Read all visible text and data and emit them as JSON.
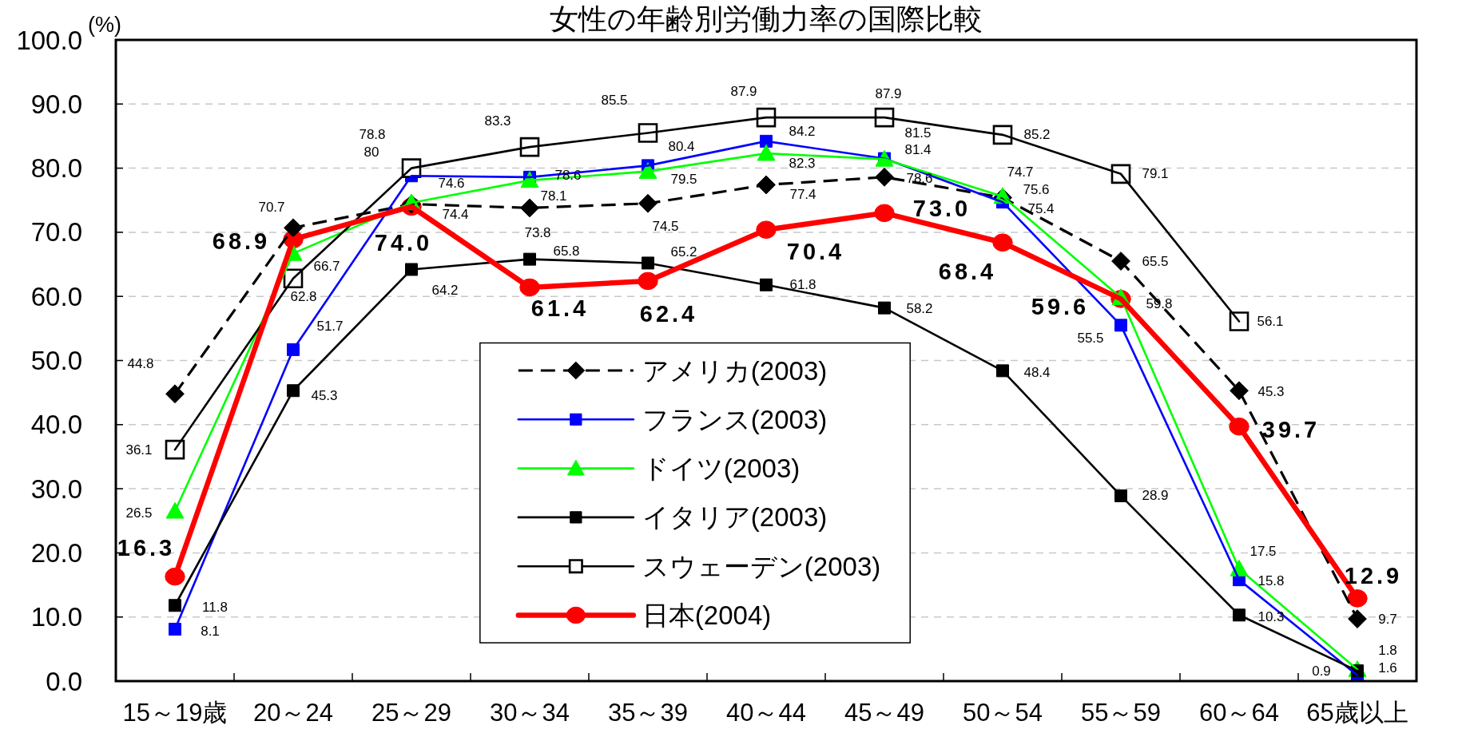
{
  "chart_data": {
    "type": "line",
    "title": "女性の年齢別労働力率の国際比較",
    "ylabel": "(%)",
    "categories": [
      "15～19歳",
      "20～24",
      "25～29",
      "30～34",
      "35～39",
      "40～44",
      "45～49",
      "50～54",
      "55～59",
      "60～64",
      "65歳以上"
    ],
    "ylim": [
      0,
      100
    ],
    "yticks": [
      {
        "value": 0,
        "label": "0.0"
      },
      {
        "value": 10,
        "label": "10.0"
      },
      {
        "value": 20,
        "label": "20.0"
      },
      {
        "value": 30,
        "label": "30.0"
      },
      {
        "value": 40,
        "label": "40.0"
      },
      {
        "value": 50,
        "label": "50.0"
      },
      {
        "value": 60,
        "label": "60.0"
      },
      {
        "value": 70,
        "label": "70.0"
      },
      {
        "value": 80,
        "label": "80.0"
      },
      {
        "value": 90,
        "label": "90.0"
      },
      {
        "value": 100,
        "label": "100.0"
      }
    ],
    "grid": "y",
    "legend": "bottom",
    "series": [
      {
        "name": "アメリカ(2003)",
        "color": "#000000",
        "marker": "diamond",
        "line_style": "dashed",
        "values": [
          44.8,
          70.7,
          74.4,
          73.8,
          74.5,
          77.4,
          78.6,
          75.4,
          65.5,
          45.3,
          9.7
        ],
        "value_labels": [
          "44.8",
          "70.7",
          "74.4",
          "73.8",
          "74.5",
          "77.4",
          "78.6",
          "75.4",
          "65.5",
          "45.3",
          "9.7"
        ]
      },
      {
        "name": "フランス(2003)",
        "color": "#0000ff",
        "marker": "square",
        "line_style": "solid",
        "values": [
          8.1,
          51.7,
          78.8,
          78.6,
          80.4,
          84.2,
          81.5,
          74.7,
          55.5,
          15.8,
          0.9
        ],
        "value_labels": [
          "8.1",
          "51.7",
          "78.8",
          "78.6",
          "80.4",
          "84.2",
          "81.5",
          "74.7",
          "55.5",
          "15.8",
          "0.9"
        ]
      },
      {
        "name": "ドイツ(2003)",
        "color": "#00ff00",
        "marker": "triangle",
        "line_style": "solid",
        "values": [
          26.5,
          66.7,
          74.6,
          78.1,
          79.5,
          82.3,
          81.4,
          75.6,
          59.8,
          17.5,
          1.8
        ],
        "value_labels": [
          "26.5",
          "66.7",
          "74.6",
          "78.1",
          "79.5",
          "82.3",
          "81.4",
          "75.6",
          "59.8",
          "17.5",
          "1.8"
        ]
      },
      {
        "name": "イタリア(2003)",
        "color": "#000000",
        "marker": "square",
        "line_style": "solid",
        "values": [
          11.8,
          45.3,
          64.2,
          65.8,
          65.2,
          61.8,
          58.2,
          48.4,
          28.9,
          10.3,
          1.6
        ],
        "value_labels": [
          "11.8",
          "45.3",
          "64.2",
          "65.8",
          "65.2",
          "61.8",
          "58.2",
          "48.4",
          "28.9",
          "10.3",
          "1.6"
        ]
      },
      {
        "name": "スウェーデン(2003)",
        "color": "#000000",
        "marker": "square",
        "line_style": "solid",
        "values": [
          36.1,
          62.8,
          80,
          83.3,
          85.5,
          87.9,
          87.9,
          85.2,
          79.1,
          56.1,
          null
        ],
        "value_labels": [
          "36.1",
          "62.8",
          "80",
          "83.3",
          "85.5",
          "87.9",
          "87.9",
          "85.2",
          "79.1",
          "56.1",
          null
        ]
      },
      {
        "name": "日本(2004)",
        "color": "#ff0000",
        "marker": "circle",
        "line_style": "solid",
        "values": [
          16.3,
          68.9,
          74.0,
          61.4,
          62.4,
          70.4,
          73.0,
          68.4,
          59.6,
          39.7,
          12.9
        ],
        "value_labels": [
          "16.3",
          "68.9",
          "74.0",
          "61.4",
          "62.4",
          "70.4",
          "73.0",
          "68.4",
          "59.6",
          "39.7",
          "12.9"
        ]
      }
    ]
  }
}
